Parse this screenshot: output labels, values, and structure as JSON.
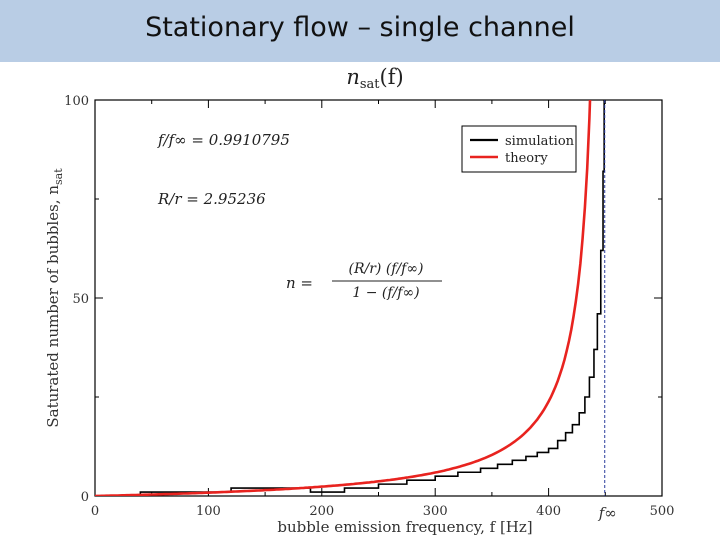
{
  "slide": {
    "title": "Stationary flow – single channel"
  },
  "chart_data": {
    "type": "line",
    "title": "n_sat(f)",
    "title_main": "n",
    "title_sub": "sat",
    "title_arg": "(f)",
    "xlabel": "bubble emission frequency, f [Hz]",
    "ylabel": "Saturated number of bubbles, n_sat",
    "ylabel_main": "Saturated number of bubbles, n",
    "ylabel_sub": "sat",
    "xlim": [
      0,
      500
    ],
    "ylim": [
      0,
      100
    ],
    "x_ticks": [
      {
        "value": 0,
        "label": "0"
      },
      {
        "value": 100,
        "label": "100"
      },
      {
        "value": 200,
        "label": "200"
      },
      {
        "value": 300,
        "label": "300"
      },
      {
        "value": 400,
        "label": "400"
      },
      {
        "value": 500,
        "label": "500"
      }
    ],
    "y_ticks": [
      {
        "value": 0,
        "label": "0"
      },
      {
        "value": 50,
        "label": "50"
      },
      {
        "value": 100,
        "label": "100"
      }
    ],
    "f_inf": 449.5,
    "f_inf_label": "f∞",
    "annotations": {
      "ratio_f": "f/f∞ = 0.9910795",
      "ratio_R": "R/r = 2.95236",
      "formula_lhs": "n =",
      "formula_num": "(R/r) (f/f∞)",
      "formula_den": "1 − (f/f∞)"
    },
    "legend_position": "top-right",
    "series": [
      {
        "name": "simulation",
        "color": "#000000",
        "style": "step",
        "x": [
          0,
          40,
          80,
          120,
          160,
          190,
          220,
          250,
          275,
          300,
          320,
          340,
          355,
          368,
          380,
          390,
          400,
          408,
          415,
          421,
          427,
          432,
          436,
          440,
          443,
          446,
          448,
          449
        ],
        "y": [
          0,
          1,
          1,
          2,
          2,
          1,
          2,
          3,
          4,
          5,
          6,
          7,
          8,
          9,
          10,
          11,
          12,
          14,
          16,
          18,
          21,
          25,
          30,
          37,
          46,
          62,
          82,
          100
        ]
      },
      {
        "name": "theory",
        "color": "#e8231f",
        "style": "line",
        "R_over_r": 2.95236
      }
    ],
    "grid": false
  }
}
